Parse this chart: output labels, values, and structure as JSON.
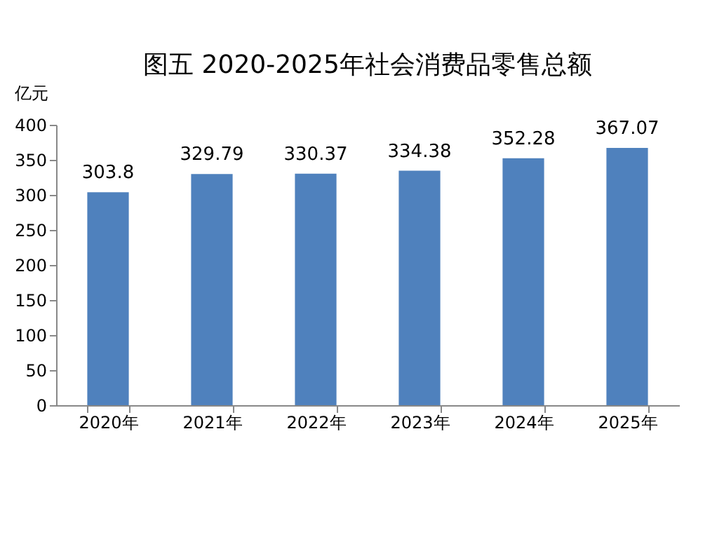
{
  "chart_data": {
    "type": "bar",
    "title": "图五    2020-2025年社会消费品零售总额",
    "ylabel": "亿元",
    "categories": [
      "2020年",
      "2021年",
      "2022年",
      "2023年",
      "2024年",
      "2025年"
    ],
    "values": [
      303.8,
      329.79,
      330.37,
      334.38,
      352.28,
      367.07
    ],
    "color": "#4f81bd",
    "ylim": [
      0,
      400
    ],
    "yticks": [
      0,
      50,
      100,
      150,
      200,
      250,
      300,
      350,
      400
    ],
    "data_labels": true,
    "grid": false
  }
}
